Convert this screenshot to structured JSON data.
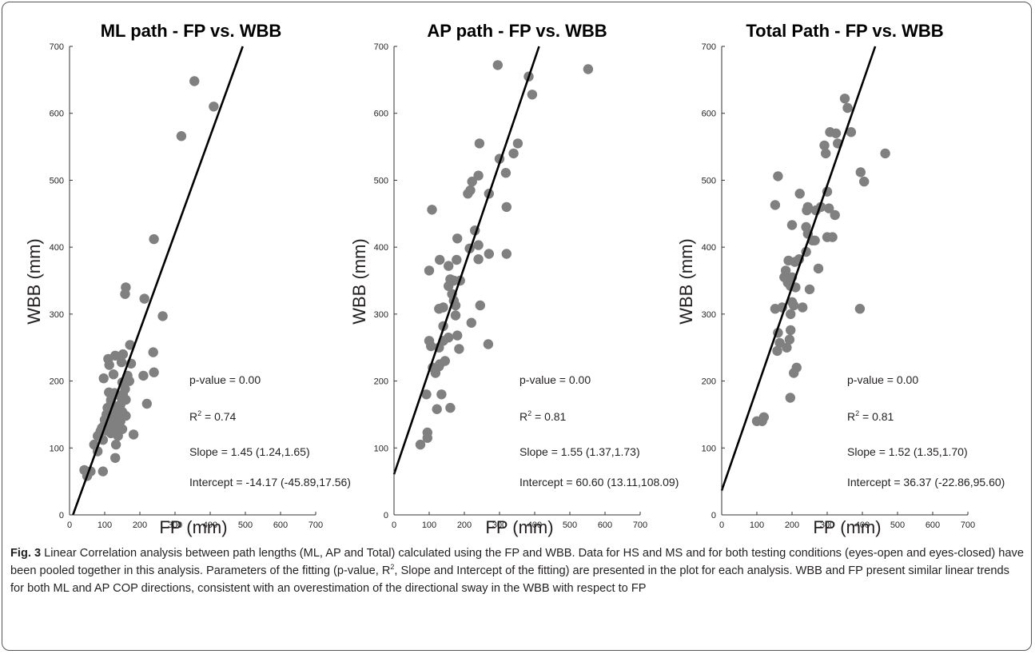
{
  "colors": {
    "marker": "#808080",
    "fit_line": "#000000",
    "axis": "#333333",
    "frame": "#555555"
  },
  "chart_data": [
    {
      "type": "scatter",
      "title": "ML path - FP vs. WBB",
      "xlabel": "FP (mm)",
      "ylabel": "WBB (mm)",
      "xlim": [
        0,
        700
      ],
      "ylim": [
        0,
        700
      ],
      "xticks": [
        "0",
        "100",
        "200",
        "300",
        "400",
        "500",
        "600",
        "700"
      ],
      "yticks": [
        "0",
        "100",
        "200",
        "300",
        "400",
        "500",
        "600",
        "700"
      ],
      "fit": {
        "slope": 1.45,
        "intercept": -14.17
      },
      "annotations": {
        "pvalue": "p-value = 0.00",
        "r2_prefix": "R",
        "r2_sup": "2",
        "r2_value": " = 0.74",
        "slope": "Slope = 1.45 (1.24,1.65)",
        "intercept": "Intercept = -14.17 (-45.89,17.56)"
      },
      "points": [
        [
          355,
          648
        ],
        [
          410,
          610
        ],
        [
          318,
          566
        ],
        [
          240,
          412
        ],
        [
          213,
          323
        ],
        [
          160,
          340
        ],
        [
          158,
          330
        ],
        [
          265,
          297
        ],
        [
          238,
          243
        ],
        [
          172,
          254
        ],
        [
          110,
          233
        ],
        [
          113,
          224
        ],
        [
          130,
          238
        ],
        [
          152,
          240
        ],
        [
          125,
          210
        ],
        [
          97,
          204
        ],
        [
          150,
          198
        ],
        [
          165,
          208
        ],
        [
          210,
          208
        ],
        [
          240,
          213
        ],
        [
          175,
          226
        ],
        [
          220,
          166
        ],
        [
          182,
          120
        ],
        [
          160,
          148
        ],
        [
          112,
          183
        ],
        [
          128,
          182
        ],
        [
          142,
          178
        ],
        [
          152,
          180
        ],
        [
          160,
          172
        ],
        [
          118,
          172
        ],
        [
          130,
          162
        ],
        [
          140,
          158
        ],
        [
          150,
          154
        ],
        [
          108,
          160
        ],
        [
          120,
          150
        ],
        [
          132,
          145
        ],
        [
          145,
          140
        ],
        [
          100,
          142
        ],
        [
          112,
          138
        ],
        [
          125,
          135
        ],
        [
          138,
          132
        ],
        [
          150,
          128
        ],
        [
          92,
          130
        ],
        [
          105,
          126
        ],
        [
          118,
          122
        ],
        [
          80,
          118
        ],
        [
          95,
          112
        ],
        [
          70,
          105
        ],
        [
          80,
          95
        ],
        [
          60,
          65
        ],
        [
          50,
          58
        ],
        [
          42,
          67
        ],
        [
          132,
          105
        ],
        [
          130,
          85
        ],
        [
          95,
          65
        ],
        [
          118,
          170
        ],
        [
          105,
          150
        ],
        [
          88,
          125
        ],
        [
          100,
          135
        ],
        [
          125,
          128
        ],
        [
          138,
          118
        ],
        [
          145,
          165
        ],
        [
          158,
          188
        ],
        [
          148,
          228
        ],
        [
          170,
          200
        ]
      ]
    },
    {
      "type": "scatter",
      "title": "AP path - FP vs. WBB",
      "xlabel": "FP (mm)",
      "ylabel": "WBB (mm)",
      "xlim": [
        0,
        700
      ],
      "ylim": [
        0,
        700
      ],
      "xticks": [
        "0",
        "100",
        "200",
        "300",
        "400",
        "500",
        "600",
        "700"
      ],
      "yticks": [
        "0",
        "100",
        "200",
        "300",
        "400",
        "500",
        "600",
        "700"
      ],
      "fit": {
        "slope": 1.55,
        "intercept": 60.6
      },
      "annotations": {
        "pvalue": "p-value = 0.00",
        "r2_prefix": "R",
        "r2_sup": "2",
        "r2_value": " = 0.81",
        "slope": "Slope = 1.55 (1.37,1.73)",
        "intercept": "Intercept = 60.60 (13.11,108.09)"
      },
      "points": [
        [
          295,
          672
        ],
        [
          552,
          666
        ],
        [
          383,
          655
        ],
        [
          393,
          628
        ],
        [
          352,
          555
        ],
        [
          243,
          555
        ],
        [
          340,
          540
        ],
        [
          300,
          532
        ],
        [
          318,
          511
        ],
        [
          240,
          507
        ],
        [
          222,
          498
        ],
        [
          217,
          485
        ],
        [
          210,
          480
        ],
        [
          270,
          480
        ],
        [
          108,
          456
        ],
        [
          320,
          460
        ],
        [
          230,
          425
        ],
        [
          180,
          413
        ],
        [
          240,
          403
        ],
        [
          215,
          398
        ],
        [
          130,
          381
        ],
        [
          178,
          381
        ],
        [
          240,
          382
        ],
        [
          155,
          372
        ],
        [
          270,
          390
        ],
        [
          320,
          390
        ],
        [
          160,
          352
        ],
        [
          170,
          350
        ],
        [
          188,
          350
        ],
        [
          155,
          342
        ],
        [
          165,
          330
        ],
        [
          170,
          320
        ],
        [
          175,
          313
        ],
        [
          245,
          313
        ],
        [
          128,
          308
        ],
        [
          140,
          310
        ],
        [
          100,
          365
        ],
        [
          175,
          298
        ],
        [
          220,
          287
        ],
        [
          140,
          282
        ],
        [
          180,
          268
        ],
        [
          155,
          265
        ],
        [
          128,
          250
        ],
        [
          185,
          248
        ],
        [
          100,
          260
        ],
        [
          105,
          252
        ],
        [
          268,
          255
        ],
        [
          110,
          220
        ],
        [
          130,
          225
        ],
        [
          145,
          230
        ],
        [
          118,
          212
        ],
        [
          92,
          180
        ],
        [
          135,
          180
        ],
        [
          122,
          158
        ],
        [
          160,
          160
        ],
        [
          95,
          123
        ],
        [
          95,
          115
        ],
        [
          75,
          105
        ],
        [
          128,
          222
        ],
        [
          140,
          260
        ]
      ]
    },
    {
      "type": "scatter",
      "title": "Total Path - FP vs. WBB",
      "xlabel": "FP (mm)",
      "ylabel": "WBB (mm)",
      "xlim": [
        0,
        700
      ],
      "ylim": [
        0,
        700
      ],
      "xticks": [
        "0",
        "100",
        "200",
        "300",
        "400",
        "500",
        "600",
        "700"
      ],
      "yticks": [
        "0",
        "100",
        "200",
        "300",
        "400",
        "500",
        "600",
        "700"
      ],
      "fit": {
        "slope": 1.52,
        "intercept": 36.37
      },
      "annotations": {
        "pvalue": "p-value = 0.00",
        "r2_prefix": "R",
        "r2_sup": "2",
        "r2_value": " = 0.81",
        "slope": "Slope = 1.52 (1.35,1.70)",
        "intercept": "Intercept = 36.37 (-22.86,95.60)"
      },
      "points": [
        [
          350,
          622
        ],
        [
          358,
          608
        ],
        [
          308,
          572
        ],
        [
          325,
          570
        ],
        [
          368,
          572
        ],
        [
          330,
          555
        ],
        [
          292,
          552
        ],
        [
          296,
          540
        ],
        [
          465,
          540
        ],
        [
          160,
          506
        ],
        [
          395,
          512
        ],
        [
          405,
          498
        ],
        [
          222,
          480
        ],
        [
          300,
          483
        ],
        [
          152,
          463
        ],
        [
          245,
          460
        ],
        [
          242,
          455
        ],
        [
          268,
          455
        ],
        [
          282,
          460
        ],
        [
          305,
          458
        ],
        [
          322,
          448
        ],
        [
          240,
          430
        ],
        [
          245,
          420
        ],
        [
          200,
          433
        ],
        [
          315,
          415
        ],
        [
          300,
          415
        ],
        [
          258,
          410
        ],
        [
          240,
          393
        ],
        [
          275,
          368
        ],
        [
          190,
          380
        ],
        [
          208,
          378
        ],
        [
          220,
          382
        ],
        [
          178,
          355
        ],
        [
          200,
          355
        ],
        [
          188,
          347
        ],
        [
          196,
          342
        ],
        [
          210,
          340
        ],
        [
          250,
          337
        ],
        [
          230,
          310
        ],
        [
          152,
          308
        ],
        [
          172,
          310
        ],
        [
          200,
          318
        ],
        [
          205,
          313
        ],
        [
          196,
          300
        ],
        [
          160,
          272
        ],
        [
          196,
          276
        ],
        [
          193,
          262
        ],
        [
          165,
          257
        ],
        [
          185,
          250
        ],
        [
          158,
          245
        ],
        [
          213,
          220
        ],
        [
          205,
          212
        ],
        [
          195,
          175
        ],
        [
          120,
          146
        ],
        [
          115,
          140
        ],
        [
          100,
          140
        ],
        [
          393,
          308
        ],
        [
          182,
          365
        ],
        [
          265,
          410
        ]
      ]
    }
  ],
  "caption": {
    "label": "Fig. 3",
    "text_1": " Linear Correlation analysis between path lengths (ML, AP and Total) calculated using the FP and WBB. Data for HS and MS and for both testing conditions (eyes-open and eyes-closed) have been pooled together in this analysis. Parameters of the fitting (p-value, R",
    "sup": "2",
    "text_2": ", Slope and Intercept of the fitting) are presented in the plot for each analysis. WBB and FP present similar linear trends for both ML and AP COP directions, consistent with an overestimation of the directional sway in the WBB with respect to FP"
  }
}
